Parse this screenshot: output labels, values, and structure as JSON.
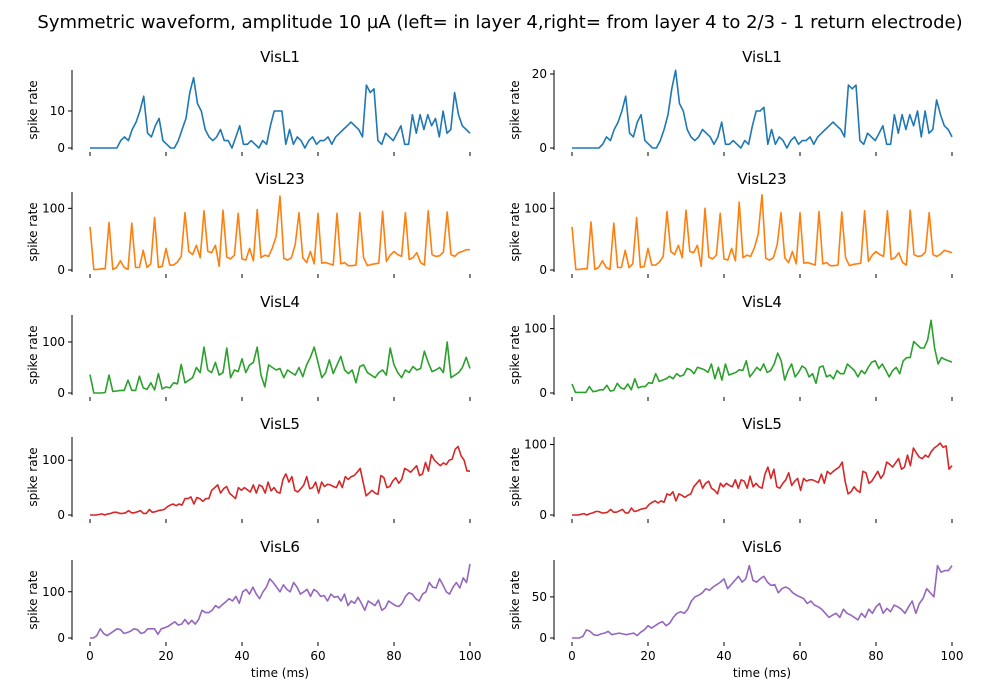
{
  "suptitle": "Symmetric waveform, amplitude 10 µA (left= in layer 4,right= from layer 4 to 2/3 - 1 return electrode)",
  "x_label": "time (ms)",
  "y_label": "spike rate",
  "chart_data": [
    {
      "type": "line",
      "title": "VisL1",
      "color": "#1f77b4",
      "x_start": 0,
      "x_step": 1,
      "xlim": [
        0,
        100
      ],
      "xticks": [
        0,
        20,
        40,
        60,
        80,
        100
      ],
      "ylim": [
        0,
        20
      ],
      "yticks": [
        0,
        10
      ],
      "values": [
        0,
        0,
        0,
        0,
        0,
        0,
        0,
        0,
        2,
        3,
        2,
        5,
        7,
        10,
        14,
        4,
        3,
        6,
        8,
        2,
        1,
        0,
        0,
        2,
        5,
        8,
        15,
        19,
        12,
        10,
        5,
        3,
        2,
        3,
        5,
        2,
        2,
        0,
        3,
        6,
        1,
        1,
        2,
        1,
        0,
        2,
        1,
        6,
        10,
        10,
        10,
        1,
        5,
        1,
        3,
        2,
        0,
        2,
        3,
        1,
        2,
        2,
        3,
        1,
        3,
        4,
        5,
        6,
        7,
        6,
        5,
        3,
        17,
        15,
        16,
        2,
        1,
        4,
        3,
        2,
        4,
        6,
        1,
        1,
        9,
        4,
        9,
        5,
        9,
        6,
        8,
        3,
        10,
        4,
        5,
        15,
        9,
        6,
        5,
        4
      ]
    },
    {
      "type": "line",
      "title": "VisL1",
      "color": "#1f77b4",
      "x_start": 0,
      "x_step": 1,
      "xlim": [
        0,
        100
      ],
      "xticks": [
        0,
        20,
        40,
        60,
        80,
        100
      ],
      "ylim": [
        0,
        20
      ],
      "yticks": [
        0,
        20
      ],
      "values": [
        0,
        0,
        0,
        0,
        0,
        0,
        0,
        0,
        1,
        3,
        2,
        5,
        7,
        10,
        14,
        4,
        3,
        7,
        9,
        2,
        1,
        0,
        0,
        2,
        5,
        9,
        16,
        21,
        12,
        10,
        5,
        3,
        2,
        3,
        5,
        4,
        3,
        1,
        3,
        7,
        1,
        1,
        2,
        1,
        0,
        2,
        1,
        6,
        10,
        10,
        11,
        1,
        5,
        1,
        3,
        2,
        0,
        2,
        3,
        1,
        2,
        2,
        3,
        1,
        3,
        4,
        5,
        6,
        7,
        6,
        5,
        3,
        17,
        16,
        17,
        2,
        1,
        4,
        3,
        2,
        4,
        6,
        1,
        1,
        9,
        4,
        9,
        5,
        9,
        6,
        10,
        3,
        10,
        4,
        5,
        13,
        9,
        6,
        5,
        3
      ]
    },
    {
      "type": "line",
      "title": "VisL23",
      "color": "#ff7f0e",
      "x_start": 0,
      "x_step": 1,
      "xlim": [
        0,
        100
      ],
      "xticks": [
        0,
        20,
        40,
        60,
        80,
        100
      ],
      "ylim": [
        0,
        120
      ],
      "yticks": [
        0,
        100
      ],
      "values": [
        70,
        1,
        1,
        2,
        2,
        77,
        1,
        4,
        15,
        4,
        1,
        76,
        4,
        4,
        32,
        4,
        10,
        85,
        4,
        6,
        35,
        8,
        8,
        13,
        22,
        93,
        30,
        25,
        40,
        20,
        96,
        30,
        28,
        40,
        6,
        97,
        21,
        18,
        24,
        92,
        18,
        16,
        35,
        15,
        98,
        20,
        24,
        22,
        36,
        55,
        120,
        19,
        16,
        20,
        41,
        93,
        20,
        12,
        30,
        10,
        92,
        11,
        12,
        10,
        8,
        92,
        10,
        12,
        7,
        7,
        8,
        93,
        20,
        7,
        9,
        10,
        11,
        95,
        14,
        24,
        30,
        25,
        22,
        93,
        17,
        20,
        28,
        12,
        8,
        96,
        25,
        22,
        23,
        29,
        94,
        25,
        22,
        28,
        30,
        33,
        33
      ]
    },
    {
      "type": "line",
      "title": "VisL23",
      "color": "#ff7f0e",
      "x_start": 0,
      "x_step": 1,
      "xlim": [
        0,
        100
      ],
      "xticks": [
        0,
        20,
        40,
        60,
        80,
        100
      ],
      "ylim": [
        0,
        120
      ],
      "yticks": [
        0,
        100
      ],
      "values": [
        70,
        1,
        1,
        2,
        2,
        78,
        1,
        4,
        15,
        4,
        1,
        76,
        4,
        4,
        32,
        4,
        10,
        85,
        4,
        6,
        35,
        8,
        8,
        13,
        22,
        95,
        30,
        25,
        40,
        20,
        97,
        30,
        28,
        40,
        6,
        100,
        21,
        18,
        24,
        92,
        18,
        16,
        35,
        15,
        110,
        20,
        24,
        22,
        36,
        58,
        122,
        19,
        16,
        20,
        41,
        93,
        20,
        12,
        30,
        10,
        93,
        11,
        12,
        10,
        8,
        95,
        10,
        12,
        7,
        7,
        8,
        94,
        20,
        7,
        9,
        10,
        11,
        96,
        14,
        24,
        30,
        25,
        22,
        96,
        17,
        20,
        28,
        12,
        8,
        97,
        25,
        22,
        23,
        29,
        93,
        25,
        22,
        26,
        32,
        30,
        28
      ]
    },
    {
      "type": "line",
      "title": "VisL4",
      "color": "#2ca02c",
      "x_start": 0,
      "x_step": 1,
      "xlim": [
        0,
        100
      ],
      "xticks": [
        0,
        20,
        40,
        60,
        80,
        100
      ],
      "ylim": [
        0,
        145
      ],
      "yticks": [
        0,
        100
      ],
      "values": [
        36,
        0,
        0,
        0,
        1,
        35,
        3,
        4,
        5,
        5,
        25,
        5,
        5,
        33,
        10,
        7,
        20,
        6,
        38,
        8,
        12,
        10,
        20,
        18,
        56,
        20,
        25,
        30,
        50,
        40,
        90,
        45,
        40,
        60,
        35,
        40,
        88,
        30,
        45,
        42,
        67,
        40,
        55,
        60,
        90,
        35,
        12,
        55,
        50,
        45,
        48,
        30,
        45,
        40,
        35,
        50,
        32,
        55,
        70,
        90,
        60,
        30,
        40,
        65,
        38,
        55,
        72,
        45,
        38,
        45,
        20,
        52,
        55,
        40,
        35,
        30,
        40,
        45,
        35,
        88,
        55,
        40,
        30,
        45,
        40,
        52,
        45,
        48,
        82,
        60,
        42,
        45,
        50,
        40,
        100,
        30,
        35,
        40,
        50,
        70,
        48
      ]
    },
    {
      "type": "line",
      "title": "VisL4",
      "color": "#2ca02c",
      "x_start": 0,
      "x_step": 1,
      "xlim": [
        0,
        100
      ],
      "xticks": [
        0,
        20,
        40,
        60,
        80,
        100
      ],
      "ylim": [
        0,
        115
      ],
      "yticks": [
        0,
        100
      ],
      "values": [
        14,
        1,
        1,
        1,
        1,
        10,
        2,
        3,
        5,
        5,
        12,
        3,
        4,
        15,
        8,
        6,
        14,
        5,
        22,
        8,
        10,
        10,
        16,
        15,
        30,
        18,
        20,
        22,
        26,
        22,
        30,
        26,
        28,
        38,
        36,
        30,
        40,
        38,
        36,
        32,
        45,
        22,
        40,
        20,
        45,
        28,
        30,
        32,
        36,
        35,
        50,
        25,
        32,
        40,
        35,
        45,
        32,
        35,
        45,
        62,
        50,
        20,
        35,
        45,
        25,
        32,
        42,
        38,
        25,
        30,
        15,
        40,
        42,
        25,
        28,
        22,
        35,
        30,
        30,
        45,
        40,
        35,
        25,
        35,
        30,
        40,
        48,
        50,
        38,
        45,
        35,
        25,
        35,
        40,
        30,
        50,
        55,
        55,
        80,
        75,
        70,
        70,
        82,
        113,
        70,
        45,
        55,
        52,
        50,
        48
      ]
    },
    {
      "type": "line",
      "title": "VisL5",
      "color": "#d62728",
      "x_start": 0,
      "x_step": 1,
      "xlim": [
        0,
        100
      ],
      "xticks": [
        0,
        20,
        40,
        60,
        80,
        100
      ],
      "ylim": [
        0,
        135
      ],
      "yticks": [
        0,
        100
      ],
      "values": [
        0,
        0,
        0,
        1,
        2,
        0,
        2,
        3,
        5,
        5,
        3,
        3,
        4,
        8,
        4,
        4,
        6,
        8,
        3,
        3,
        10,
        5,
        6,
        8,
        9,
        10,
        15,
        18,
        20,
        17,
        20,
        18,
        30,
        30,
        33,
        20,
        32,
        30,
        25,
        30,
        30,
        45,
        50,
        55,
        40,
        48,
        52,
        40,
        35,
        30,
        50,
        45,
        50,
        46,
        42,
        55,
        40,
        55,
        52,
        40,
        60,
        44,
        50,
        42,
        40,
        65,
        75,
        60,
        70,
        45,
        42,
        48,
        55,
        70,
        48,
        50,
        60,
        40,
        60,
        52,
        56,
        55,
        52,
        50,
        62,
        50,
        70,
        65,
        70,
        72,
        78,
        85,
        60,
        35,
        40,
        45,
        40,
        38,
        72,
        68,
        50,
        52,
        62,
        68,
        58,
        65,
        85,
        82,
        78,
        84,
        90,
        72,
        75,
        96,
        80,
        110,
        100,
        95,
        90,
        95,
        92,
        100,
        102,
        120,
        125,
        108,
        100,
        80,
        80
      ]
    },
    {
      "type": "line",
      "title": "VisL5",
      "color": "#d62728",
      "x_start": 0,
      "x_step": 1,
      "xlim": [
        0,
        100
      ],
      "xticks": [
        0,
        20,
        40,
        60,
        80,
        100
      ],
      "ylim": [
        0,
        105
      ],
      "yticks": [
        0,
        100
      ],
      "values": [
        0,
        0,
        0,
        1,
        2,
        0,
        2,
        3,
        5,
        5,
        3,
        3,
        4,
        8,
        4,
        4,
        6,
        8,
        3,
        3,
        10,
        5,
        6,
        8,
        9,
        10,
        15,
        18,
        20,
        17,
        20,
        18,
        30,
        28,
        33,
        20,
        30,
        28,
        25,
        28,
        30,
        40,
        45,
        50,
        38,
        45,
        48,
        38,
        35,
        30,
        45,
        40,
        45,
        42,
        40,
        50,
        38,
        50,
        48,
        38,
        55,
        40,
        45,
        40,
        38,
        58,
        68,
        52,
        65,
        40,
        38,
        45,
        50,
        60,
        42,
        48,
        52,
        35,
        52,
        48,
        50,
        50,
        48,
        46,
        58,
        45,
        62,
        58,
        62,
        65,
        68,
        75,
        48,
        30,
        33,
        40,
        35,
        32,
        62,
        60,
        45,
        48,
        55,
        62,
        52,
        58,
        75,
        72,
        68,
        74,
        80,
        65,
        68,
        85,
        70,
        95,
        88,
        82,
        80,
        85,
        82,
        90,
        95,
        98,
        102,
        96,
        98,
        65,
        70
      ]
    },
    {
      "type": "line",
      "title": "VisL6",
      "color": "#9467bd",
      "x_start": 0,
      "x_step": 1,
      "xlim": [
        0,
        100
      ],
      "xticks": [
        0,
        20,
        40,
        60,
        80,
        100
      ],
      "ylim": [
        0,
        160
      ],
      "yticks": [
        0,
        100
      ],
      "values": [
        0,
        0,
        5,
        20,
        10,
        5,
        10,
        15,
        20,
        18,
        10,
        12,
        15,
        20,
        18,
        10,
        12,
        20,
        20,
        20,
        8,
        20,
        22,
        25,
        30,
        35,
        28,
        30,
        40,
        30,
        38,
        30,
        40,
        60,
        55,
        55,
        60,
        70,
        65,
        72,
        78,
        85,
        80,
        90,
        75,
        100,
        105,
        95,
        110,
        95,
        85,
        100,
        110,
        128,
        120,
        110,
        100,
        115,
        105,
        100,
        120,
        110,
        95,
        100,
        105,
        90,
        105,
        100,
        90,
        92,
        80,
        95,
        88,
        90,
        80,
        95,
        70,
        80,
        75,
        88,
        75,
        60,
        80,
        75,
        70,
        82,
        60,
        65,
        80,
        75,
        70,
        68,
        75,
        90,
        98,
        95,
        85,
        80,
        95,
        100,
        120,
        110,
        108,
        128,
        115,
        100,
        95,
        110,
        120,
        108,
        130,
        120,
        160
      ]
    },
    {
      "type": "line",
      "title": "VisL6",
      "color": "#9467bd",
      "x_start": 0,
      "x_step": 1,
      "xlim": [
        0,
        100
      ],
      "xticks": [
        0,
        20,
        40,
        60,
        80,
        100
      ],
      "ylim": [
        0,
        90
      ],
      "yticks": [
        0,
        50
      ],
      "values": [
        0,
        0,
        0,
        2,
        10,
        8,
        4,
        3,
        5,
        6,
        8,
        4,
        5,
        6,
        5,
        4,
        5,
        6,
        3,
        7,
        10,
        15,
        12,
        15,
        18,
        20,
        15,
        18,
        25,
        30,
        32,
        30,
        35,
        45,
        50,
        52,
        55,
        60,
        58,
        62,
        65,
        68,
        72,
        60,
        65,
        70,
        75,
        68,
        72,
        88,
        70,
        68,
        72,
        75,
        68,
        64,
        65,
        55,
        60,
        62,
        60,
        55,
        52,
        50,
        48,
        42,
        45,
        40,
        38,
        35,
        30,
        25,
        28,
        30,
        25,
        35,
        30,
        28,
        25,
        22,
        30,
        25,
        35,
        30,
        38,
        42,
        30,
        36,
        32,
        40,
        38,
        35,
        30,
        38,
        45,
        30,
        42,
        48,
        60,
        55,
        50,
        88,
        80,
        82,
        82,
        88
      ]
    }
  ]
}
